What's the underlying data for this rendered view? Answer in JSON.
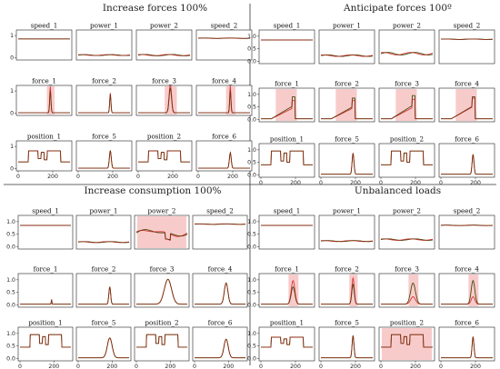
{
  "colors": {
    "green": "#2f8f2f",
    "red": "#d21f1f",
    "band": "#f08c8c",
    "dark": "#6a2a0a"
  },
  "chart_data": [
    {
      "title": "Increase forces 100%",
      "type": "line",
      "rows": [
        {
          "yticks": [
            "1",
            "0"
          ],
          "panels": [
            {
              "label": "speed_1",
              "kind": "flat",
              "level": 0.85,
              "noise": 0
            },
            {
              "label": "power_1",
              "kind": "flat",
              "level": 0.12,
              "noise": 0.02
            },
            {
              "label": "power_2",
              "kind": "flat",
              "level": 0.12,
              "noise": 0.03
            },
            {
              "label": "speed_2",
              "kind": "flat",
              "level": 0.88,
              "noise": 0.01
            }
          ]
        },
        {
          "yticks": [
            "1",
            "0"
          ],
          "panels": [
            {
              "label": "force_1",
              "kind": "spike",
              "peak": 1.0,
              "width": 2,
              "redpeak": 1.2,
              "band": 0.1
            },
            {
              "label": "force_2",
              "kind": "spike",
              "peak": 0.85,
              "width": 2,
              "redpeak": 0.9,
              "band": 0
            },
            {
              "label": "force_3",
              "kind": "spike",
              "peak": 1.1,
              "width": 4,
              "redpeak": 1.3,
              "band": 0.5
            },
            {
              "label": "force_4",
              "kind": "spike",
              "peak": 1.0,
              "width": 2,
              "redpeak": 1.25,
              "band": 0.25
            }
          ]
        },
        {
          "yticks": [
            "1",
            "0"
          ],
          "panels": [
            {
              "label": "position_1",
              "kind": "square",
              "low": 0.3,
              "high": 0.8
            },
            {
              "label": "force_5",
              "kind": "spike",
              "peak": 0.8,
              "width": 3,
              "redpeak": 0.8,
              "band": 0
            },
            {
              "label": "position_2",
              "kind": "square",
              "low": 0.3,
              "high": 0.8
            },
            {
              "label": "force_6",
              "kind": "spike",
              "peak": 0.7,
              "width": 3,
              "redpeak": 0.7,
              "band": 0
            }
          ]
        }
      ],
      "xticks": [
        "0",
        "200"
      ]
    },
    {
      "title": "Anticipate forces 100º",
      "type": "line",
      "rows": [
        {
          "yticks": [
            "1.0",
            "0.5",
            "0.0"
          ],
          "panels": [
            {
              "label": "speed_1",
              "kind": "flat",
              "level": 0.85,
              "noise": 0
            },
            {
              "label": "power_1",
              "kind": "flat",
              "level": 0.22,
              "noise": 0.03
            },
            {
              "label": "power_2",
              "kind": "flat",
              "level": 0.3,
              "noise": 0.05
            },
            {
              "label": "speed_2",
              "kind": "flat",
              "level": 0.88,
              "noise": 0.01
            }
          ]
        },
        {
          "yticks": [
            "1.0",
            "0.5",
            "0.0"
          ],
          "panels": [
            {
              "label": "force_1",
              "kind": "ramp",
              "peak": 0.9,
              "redpeak": 0.75,
              "band": 0.3
            },
            {
              "label": "force_2",
              "kind": "ramp",
              "peak": 0.85,
              "redpeak": 0.75,
              "band": 0.35
            },
            {
              "label": "force_3",
              "kind": "ramp",
              "peak": 0.95,
              "redpeak": 0.8,
              "band": 0.5
            },
            {
              "label": "force_4",
              "kind": "ramp",
              "peak": 0.9,
              "redpeak": 0.85,
              "band": 0.45
            }
          ]
        },
        {
          "yticks": [
            "1.0",
            "0.5",
            "0.0"
          ],
          "panels": [
            {
              "label": "position_1",
              "kind": "square",
              "low": 0.4,
              "high": 0.95
            },
            {
              "label": "force_5",
              "kind": "spike",
              "peak": 0.85,
              "width": 3,
              "redpeak": 0.85,
              "band": 0
            },
            {
              "label": "position_2",
              "kind": "square",
              "low": 0.4,
              "high": 0.95
            },
            {
              "label": "force_6",
              "kind": "spike",
              "peak": 0.8,
              "width": 3,
              "redpeak": 0.8,
              "band": 0
            }
          ]
        }
      ],
      "xticks": [
        "0",
        "200"
      ]
    },
    {
      "title": "Increase consumption 100%",
      "type": "line",
      "rows": [
        {
          "yticks": [
            "1.0",
            "0.5",
            "0.0"
          ],
          "panels": [
            {
              "label": "speed_1",
              "kind": "flat",
              "level": 0.85,
              "noise": 0
            },
            {
              "label": "power_1",
              "kind": "flat",
              "level": 0.18,
              "noise": 0.02
            },
            {
              "label": "power_2",
              "kind": "bandflat",
              "level": 0.55,
              "noise": 0.05
            },
            {
              "label": "speed_2",
              "kind": "flat",
              "level": 0.9,
              "noise": 0.01
            }
          ]
        },
        {
          "yticks": [
            "1.0",
            "0.5",
            "0.0"
          ],
          "panels": [
            {
              "label": "force_1",
              "kind": "spike",
              "peak": 0.2,
              "width": 1,
              "redpeak": 0.2,
              "band": 0
            },
            {
              "label": "force_2",
              "kind": "spike",
              "peak": 0.7,
              "width": 3,
              "redpeak": 0.7,
              "band": 0
            },
            {
              "label": "force_3",
              "kind": "spike",
              "peak": 1.0,
              "width": 12,
              "redpeak": 1.0,
              "band": 0
            },
            {
              "label": "force_4",
              "kind": "spike",
              "peak": 0.85,
              "width": 6,
              "redpeak": 0.85,
              "band": 0
            }
          ]
        },
        {
          "yticks": [
            "1.0",
            "0.5",
            "0.0"
          ],
          "panels": [
            {
              "label": "position_1",
              "kind": "square",
              "low": 0.45,
              "high": 0.95
            },
            {
              "label": "force_5",
              "kind": "spike",
              "peak": 0.8,
              "width": 8,
              "redpeak": 0.8,
              "band": 0
            },
            {
              "label": "position_2",
              "kind": "square",
              "low": 0.45,
              "high": 0.95
            },
            {
              "label": "force_6",
              "kind": "spike",
              "peak": 0.75,
              "width": 7,
              "redpeak": 0.75,
              "band": 0
            }
          ]
        }
      ],
      "xticks": [
        "0",
        "200"
      ]
    },
    {
      "title": "Unbalanced loads",
      "type": "line",
      "rows": [
        {
          "yticks": [
            "1.0",
            "0.5",
            "0.0"
          ],
          "panels": [
            {
              "label": "speed_1",
              "kind": "flat",
              "level": 0.85,
              "noise": 0
            },
            {
              "label": "power_1",
              "kind": "flat",
              "level": 0.22,
              "noise": 0.02
            },
            {
              "label": "power_2",
              "kind": "flat",
              "level": 0.28,
              "noise": 0.03
            },
            {
              "label": "speed_2",
              "kind": "flat",
              "level": 0.85,
              "noise": 0.01
            }
          ]
        },
        {
          "yticks": [
            "1.0",
            "0.5",
            "0.0"
          ],
          "panels": [
            {
              "label": "force_1",
              "kind": "spike",
              "peak": 0.7,
              "width": 6,
              "redpeak": 0.95,
              "band": 0.3
            },
            {
              "label": "force_2",
              "kind": "spike",
              "peak": 0.8,
              "width": 4,
              "redpeak": 1.05,
              "band": 0.15
            },
            {
              "label": "force_3",
              "kind": "spike",
              "peak": 0.85,
              "width": 8,
              "redpeak": 0.3,
              "band": 0.3
            },
            {
              "label": "force_4",
              "kind": "spike",
              "peak": 0.95,
              "width": 6,
              "redpeak": 0.3,
              "band": 0.3
            }
          ]
        },
        {
          "yticks": [
            "1.0",
            "0.5",
            "0.0"
          ],
          "panels": [
            {
              "label": "position_1",
              "kind": "square",
              "low": 0.45,
              "high": 0.85
            },
            {
              "label": "force_5",
              "kind": "spike",
              "peak": 0.9,
              "width": 3,
              "redpeak": 0.9,
              "band": 0
            },
            {
              "label": "position_2",
              "kind": "bandsquare",
              "low": 0.45,
              "high": 0.95
            },
            {
              "label": "force_6",
              "kind": "spike",
              "peak": 0.85,
              "width": 3,
              "redpeak": 0.85,
              "band": 0
            }
          ]
        }
      ],
      "xticks": [
        "0",
        "200"
      ]
    }
  ]
}
